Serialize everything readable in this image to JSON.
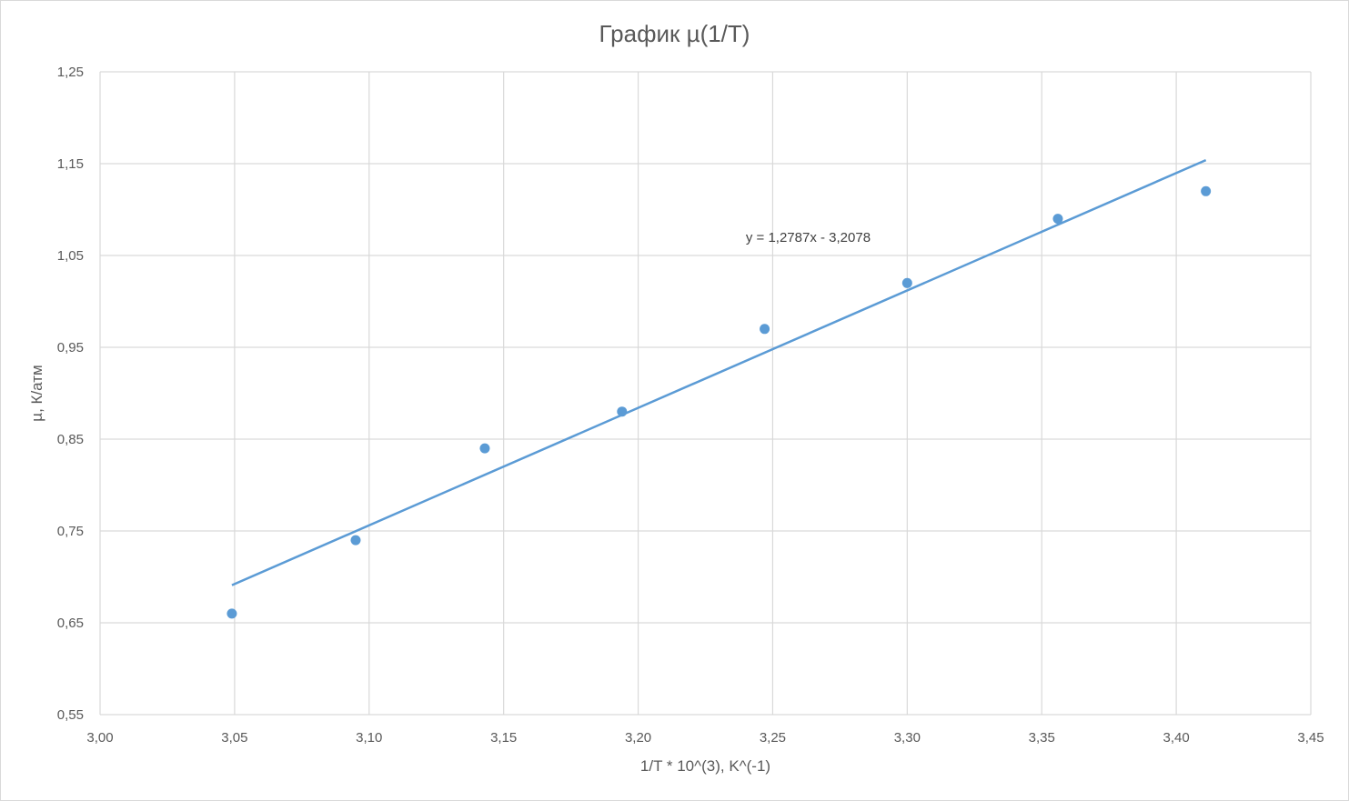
{
  "chart_data": {
    "type": "scatter",
    "title": "График µ(1/T)",
    "xlabel": "1/T * 10^(3), K^(-1)",
    "ylabel": "µ, К/атм",
    "xlim": [
      3.0,
      3.45
    ],
    "ylim": [
      0.55,
      1.25
    ],
    "x_ticks": [
      3.0,
      3.05,
      3.1,
      3.15,
      3.2,
      3.25,
      3.3,
      3.35,
      3.4,
      3.45
    ],
    "x_tick_labels": [
      "3,00",
      "3,05",
      "3,10",
      "3,15",
      "3,20",
      "3,25",
      "3,30",
      "3,35",
      "3,40",
      "3,45"
    ],
    "y_ticks": [
      0.55,
      0.65,
      0.75,
      0.85,
      0.95,
      1.05,
      1.15,
      1.25
    ],
    "y_tick_labels": [
      "0,55",
      "0,65",
      "0,75",
      "0,85",
      "0,95",
      "1,05",
      "1,15",
      "1,25"
    ],
    "grid": true,
    "series": [
      {
        "x": [
          3.049,
          3.095,
          3.143,
          3.194,
          3.247,
          3.3,
          3.356,
          3.411
        ],
        "y": [
          0.66,
          0.74,
          0.84,
          0.88,
          0.97,
          1.02,
          1.09,
          1.12
        ],
        "color": "#5b9bd5"
      }
    ],
    "trendline": {
      "type": "linear",
      "slope": 1.2787,
      "intercept": -3.2078,
      "x_range": [
        3.049,
        3.411
      ],
      "equation_label": "y = 1,2787x - 3,2078",
      "color": "#5b9bd5"
    }
  },
  "colors": {
    "grid": "#d9d9d9",
    "text": "#595959"
  }
}
